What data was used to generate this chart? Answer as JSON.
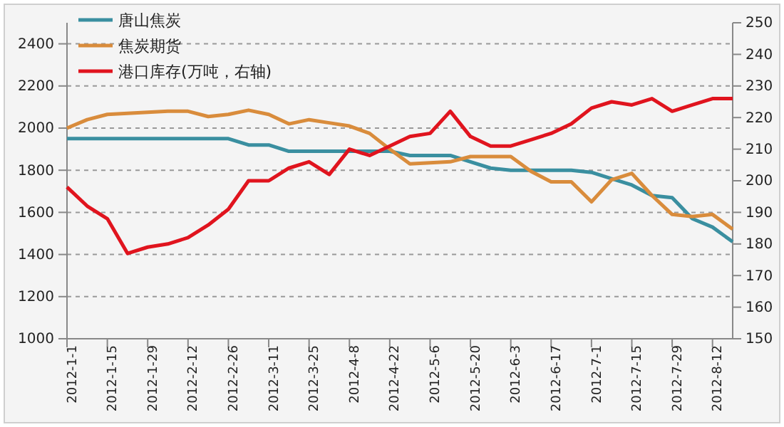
{
  "chart_data": {
    "type": "line",
    "categories": [
      "2012-1-1",
      null,
      "2012-1-15",
      null,
      "2012-1-29",
      null,
      "2012-2-12",
      null,
      "2012-2-26",
      null,
      "2012-3-11",
      null,
      "2012-3-25",
      null,
      "2012-4-8",
      null,
      "2012-4-22",
      null,
      "2012-5-6",
      null,
      "2012-5-20",
      null,
      "2012-6-3",
      null,
      "2012-6-17",
      null,
      "2012-7-1",
      null,
      "2012-7-15",
      null,
      "2012-7-29",
      null,
      "2012-8-12",
      null
    ],
    "series": [
      {
        "name": "唐山焦炭",
        "color": "#3a8fa0",
        "values": [
          1950,
          1950,
          1950,
          1950,
          1950,
          1950,
          1950,
          1950,
          1950,
          1920,
          1920,
          1890,
          1890,
          1890,
          1890,
          1890,
          1890,
          1870,
          1870,
          1870,
          1840,
          1810,
          1800,
          1800,
          1800,
          1800,
          1790,
          1760,
          1730,
          1680,
          1670,
          1570,
          1530,
          1460
        ]
      },
      {
        "name": "焦炭期货",
        "color": "#d98c3c",
        "values": [
          2000,
          2040,
          2065,
          2070,
          2075,
          2080,
          2080,
          2055,
          2065,
          2085,
          2065,
          2020,
          2040,
          2025,
          2010,
          1975,
          1900,
          1830,
          1835,
          1840,
          1865,
          1865,
          1865,
          1795,
          1745,
          1745,
          1650,
          1755,
          1785,
          1680,
          1590,
          1580,
          1590,
          1520
        ]
      },
      {
        "name": "港口库存(万吨，右轴)",
        "color": "#e0141e",
        "axis": "y2",
        "values": [
          198,
          192,
          188,
          177,
          179,
          180,
          182,
          186,
          191,
          200,
          200,
          204,
          206,
          202,
          210,
          208,
          211,
          214,
          215,
          222,
          214,
          211,
          211,
          213,
          215,
          218,
          223,
          225,
          224,
          226,
          222,
          224,
          226,
          226
        ]
      }
    ],
    "ylim": [
      1000,
      2500
    ],
    "yticks": [
      1000,
      1200,
      1400,
      1600,
      1800,
      2000,
      2200,
      2400
    ],
    "y2lim": [
      150,
      250
    ],
    "y2ticks": [
      150,
      160,
      170,
      180,
      190,
      200,
      210,
      220,
      230,
      240,
      250
    ],
    "grid": "y",
    "legend": "top left",
    "marker": "none",
    "line_style": "solid"
  }
}
